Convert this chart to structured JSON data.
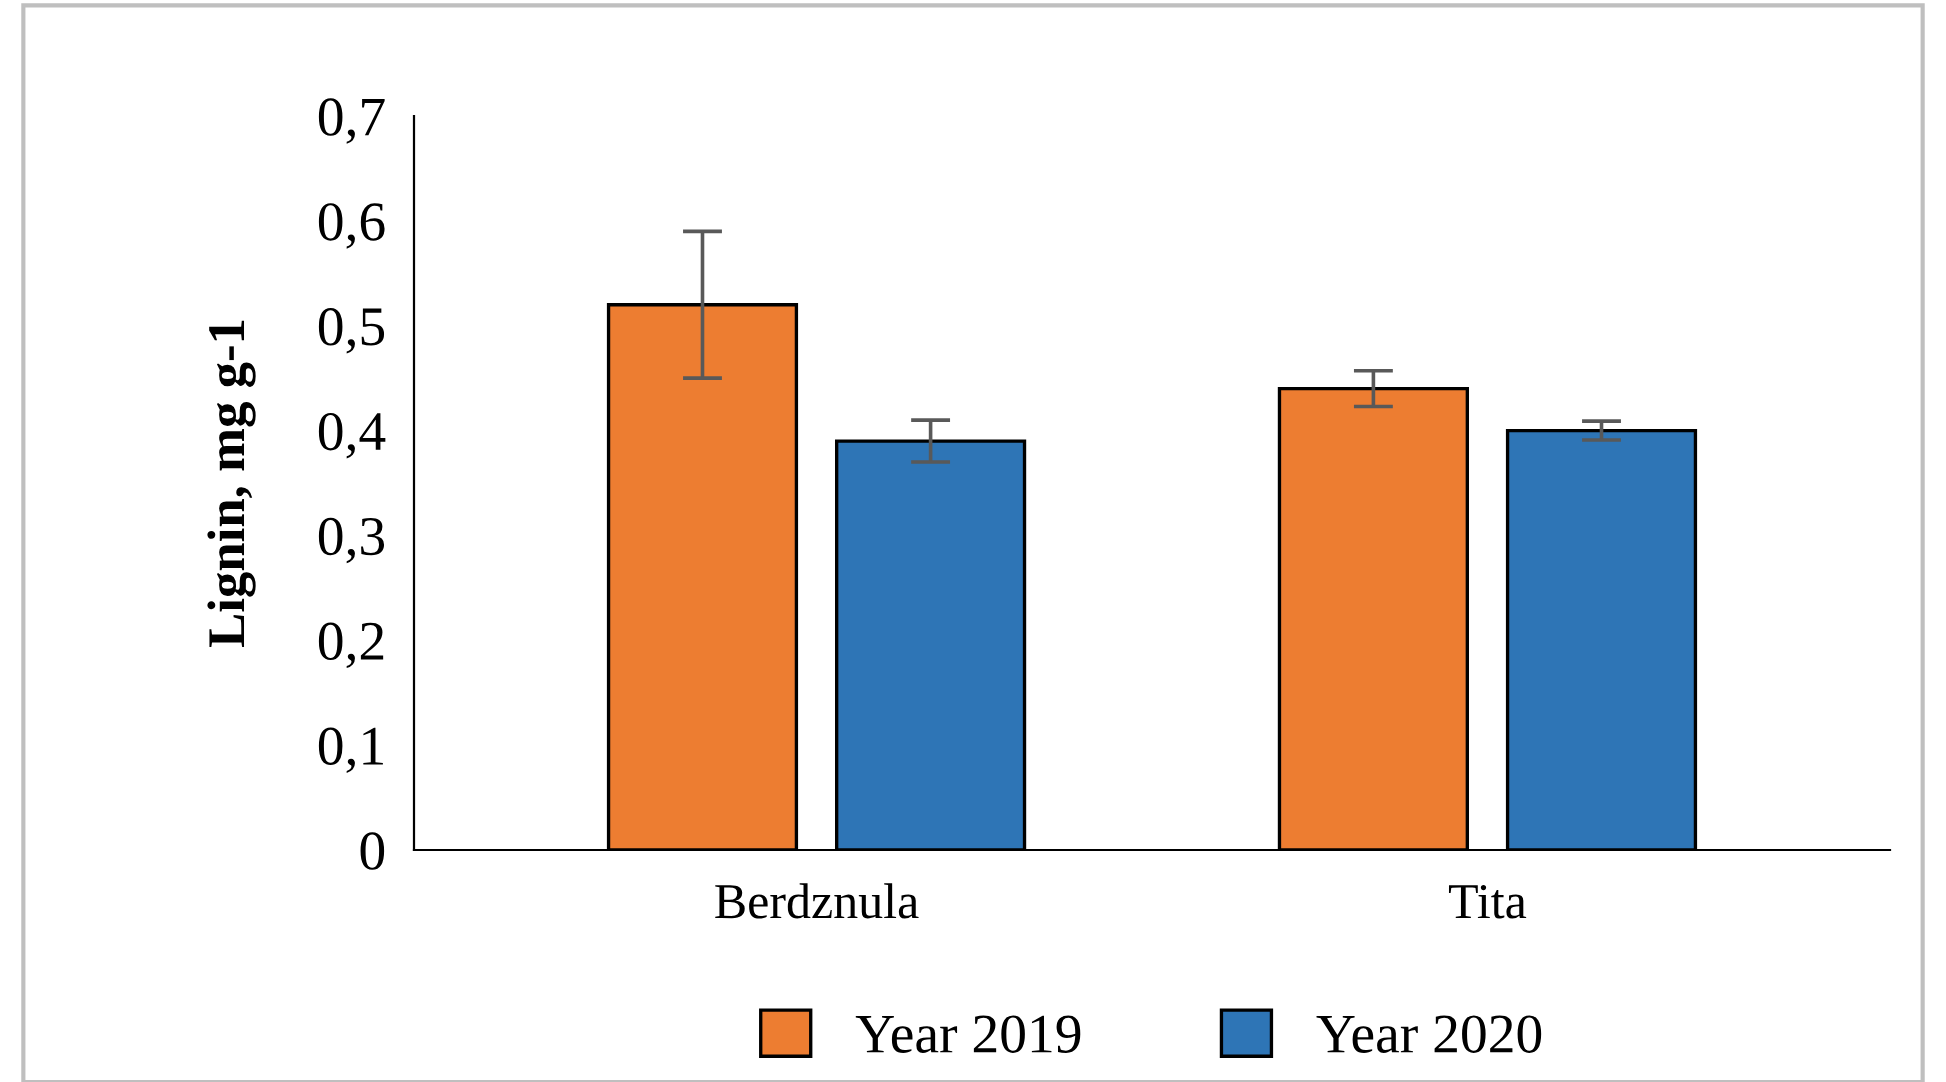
{
  "chart_data": {
    "type": "bar",
    "ylabel": "Lignin, mg g-1",
    "categories": [
      "Berdznula",
      "Tita"
    ],
    "series": [
      {
        "name": "Year 2019",
        "color": "#ed7d31",
        "values": [
          0.52,
          0.44
        ],
        "errors": [
          0.07,
          0.017
        ]
      },
      {
        "name": "Year 2020",
        "color": "#2e75b6",
        "values": [
          0.39,
          0.4
        ],
        "errors": [
          0.02,
          0.009
        ]
      }
    ],
    "ylim": [
      0,
      0.7
    ],
    "yticks": [
      {
        "value": 0,
        "label": "0"
      },
      {
        "value": 0.1,
        "label": "0,1"
      },
      {
        "value": 0.2,
        "label": "0,2"
      },
      {
        "value": 0.3,
        "label": "0,3"
      },
      {
        "value": 0.4,
        "label": "0,4"
      },
      {
        "value": 0.5,
        "label": "0,5"
      },
      {
        "value": 0.6,
        "label": "0,6"
      },
      {
        "value": 0.7,
        "label": "0,7"
      }
    ],
    "grid": false,
    "legend": "bottom"
  }
}
